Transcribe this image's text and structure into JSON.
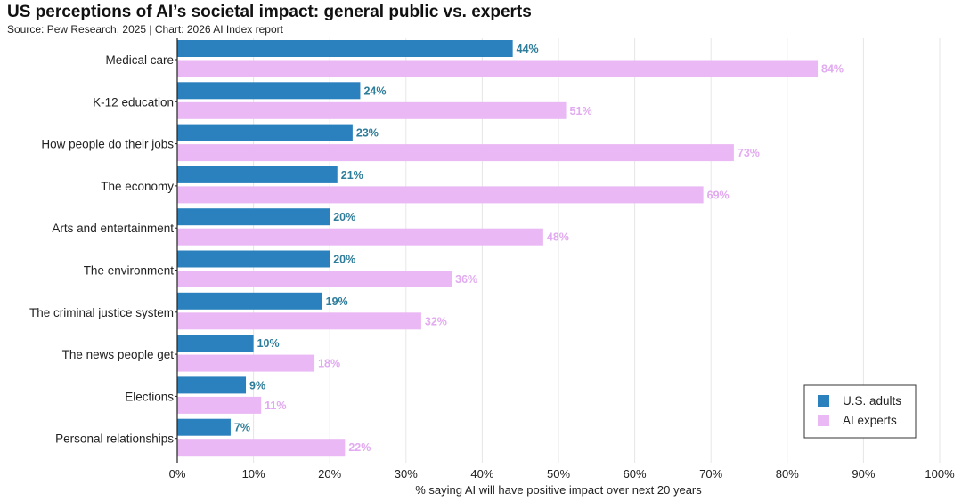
{
  "chart_data": {
    "type": "bar",
    "orientation": "horizontal",
    "title": "US perceptions of AI’s societal impact: general public vs. experts",
    "subtitle": "Source: Pew Research, 2025 | Chart: 2026 AI Index report",
    "xlabel": "% saying AI will have positive impact over next 20 years",
    "ylabel": "",
    "xlim": [
      0,
      100
    ],
    "ticks": [
      "0%",
      "10%",
      "20%",
      "30%",
      "40%",
      "50%",
      "60%",
      "70%",
      "80%",
      "90%",
      "100%"
    ],
    "tick_values": [
      0,
      10,
      20,
      30,
      40,
      50,
      60,
      70,
      80,
      90,
      100
    ],
    "grid": true,
    "legend_position": "bottom-right",
    "categories": [
      "Medical care",
      "K-12 education",
      "How people do their jobs",
      "The economy",
      "Arts and entertainment",
      "The environment",
      "The criminal justice system",
      "The news people get",
      "Elections",
      "Personal relationships"
    ],
    "series": [
      {
        "name": "U.S. adults",
        "color": "#2a81bd",
        "label_color": "#2e7d9a",
        "values": [
          44,
          24,
          23,
          21,
          20,
          20,
          19,
          10,
          9,
          7
        ],
        "labels": [
          "44%",
          "24%",
          "23%",
          "21%",
          "20%",
          "20%",
          "19%",
          "10%",
          "9%",
          "7%"
        ]
      },
      {
        "name": "AI experts",
        "color": "#eab8f4",
        "label_color": "#e2aaf0",
        "values": [
          84,
          51,
          73,
          69,
          48,
          36,
          32,
          18,
          11,
          22
        ],
        "labels": [
          "84%",
          "51%",
          "73%",
          "69%",
          "48%",
          "36%",
          "32%",
          "18%",
          "11%",
          "22%"
        ]
      }
    ]
  }
}
